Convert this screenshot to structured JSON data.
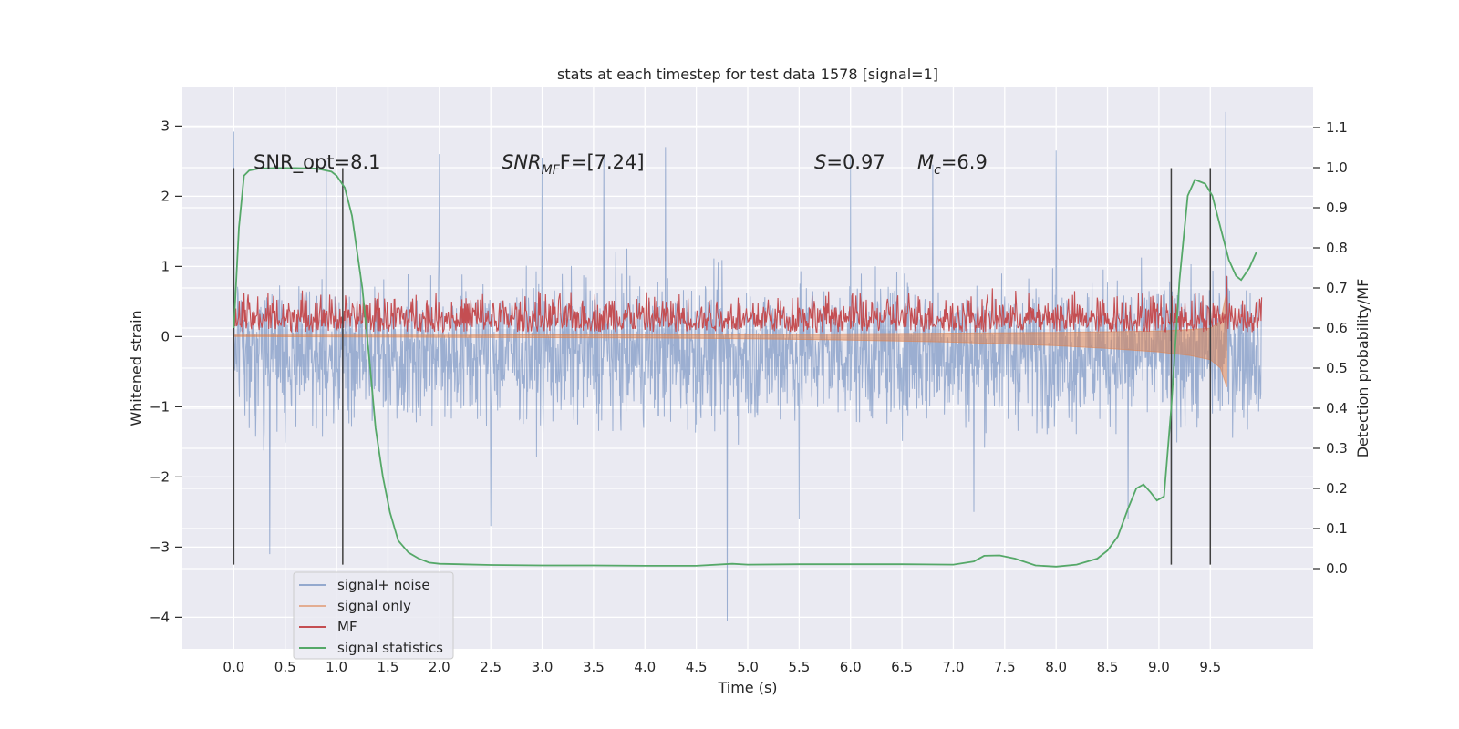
{
  "chart_data": {
    "type": "line",
    "title": "stats at each timestep for test data 1578 [signal=1]",
    "xlabel": "Time (s)",
    "ylabel_left": "Whitened strain",
    "ylabel_right": "Detection probability/MF",
    "xlim": [
      -0.5,
      10.5
    ],
    "ylim_left": [
      -4.45,
      3.55
    ],
    "ylim_right": [
      -0.2,
      1.2
    ],
    "grid": true,
    "x_ticks": [
      {
        "value": 0.0,
        "label": "0.0"
      },
      {
        "value": 0.5,
        "label": "0.5"
      },
      {
        "value": 1.0,
        "label": "1.0"
      },
      {
        "value": 1.5,
        "label": "1.5"
      },
      {
        "value": 2.0,
        "label": "2.0"
      },
      {
        "value": 2.5,
        "label": "2.5"
      },
      {
        "value": 3.0,
        "label": "3.0"
      },
      {
        "value": 3.5,
        "label": "3.5"
      },
      {
        "value": 4.0,
        "label": "4.0"
      },
      {
        "value": 4.5,
        "label": "4.5"
      },
      {
        "value": 5.0,
        "label": "5.0"
      },
      {
        "value": 5.5,
        "label": "5.5"
      },
      {
        "value": 6.0,
        "label": "6.0"
      },
      {
        "value": 6.5,
        "label": "6.5"
      },
      {
        "value": 7.0,
        "label": "7.0"
      },
      {
        "value": 7.5,
        "label": "7.5"
      },
      {
        "value": 8.0,
        "label": "8.0"
      },
      {
        "value": 8.5,
        "label": "8.5"
      },
      {
        "value": 9.0,
        "label": "9.0"
      },
      {
        "value": 9.5,
        "label": "9.5"
      }
    ],
    "y_ticks_left": [
      {
        "value": 3,
        "label": "3"
      },
      {
        "value": 2,
        "label": "2"
      },
      {
        "value": 1,
        "label": "1"
      },
      {
        "value": 0,
        "label": "0"
      },
      {
        "value": -1,
        "label": "−1"
      },
      {
        "value": -2,
        "label": "−2"
      },
      {
        "value": -3,
        "label": "−3"
      },
      {
        "value": -4,
        "label": "−4"
      }
    ],
    "y_ticks_right": [
      {
        "value": 1.1,
        "label": "1.1"
      },
      {
        "value": 1.0,
        "label": "1.0"
      },
      {
        "value": 0.9,
        "label": "0.9"
      },
      {
        "value": 0.8,
        "label": "0.8"
      },
      {
        "value": 0.7,
        "label": "0.7"
      },
      {
        "value": 0.6,
        "label": "0.6"
      },
      {
        "value": 0.5,
        "label": "0.5"
      },
      {
        "value": 0.4,
        "label": "0.4"
      },
      {
        "value": 0.3,
        "label": "0.3"
      },
      {
        "value": 0.2,
        "label": "0.2"
      },
      {
        "value": 0.1,
        "label": "0.1"
      },
      {
        "value": 0.0,
        "label": "0.0"
      }
    ],
    "annotations": {
      "snr_opt": "SNR_opt=8.1",
      "snr_mf_sym": "SNR",
      "snr_mf_sub": "MF",
      "snr_mf_val": "F=[7.24]",
      "s_sym": "S",
      "s_val": "=0.97",
      "mc_sym": "M",
      "mc_sub": "c",
      "mc_val": "=6.9"
    },
    "vertical_markers": [
      0.0,
      1.06,
      9.12,
      9.5
    ],
    "legend": {
      "placement": "lower-left",
      "entries": [
        "signal+ noise",
        "signal only",
        "MF",
        "signal statistics"
      ]
    },
    "colors": {
      "signal_noise": "#4c72b0",
      "signal_only": "#dd8452",
      "mf": "#c44e52",
      "statistics": "#55a868",
      "markers": "#404040",
      "background": "#eaeaf2",
      "grid": "#ffffff"
    },
    "series": [
      {
        "name": "signal+ noise",
        "axis": "left",
        "t_range": [
          0.0,
          10.0
        ],
        "typical_range": [
          -1.7,
          1.3
        ],
        "envelope_peaks": [
          [
            0.0,
            2.92
          ],
          [
            0.35,
            -3.1
          ],
          [
            0.9,
            2.5
          ],
          [
            1.5,
            -2.7
          ],
          [
            2.0,
            2.6
          ],
          [
            2.5,
            -2.7
          ],
          [
            3.0,
            2.55
          ],
          [
            3.6,
            2.6
          ],
          [
            4.2,
            2.7
          ],
          [
            4.8,
            -4.05
          ],
          [
            5.5,
            -2.6
          ],
          [
            6.0,
            2.6
          ],
          [
            6.8,
            2.45
          ],
          [
            7.2,
            -2.5
          ],
          [
            8.0,
            2.65
          ],
          [
            8.7,
            -2.6
          ],
          [
            9.12,
            -3.2
          ],
          [
            9.65,
            3.2
          ]
        ]
      },
      {
        "name": "signal only",
        "axis": "left",
        "x": [
          0.0,
          2.0,
          4.0,
          5.0,
          6.0,
          7.0,
          8.0,
          8.5,
          9.0,
          9.3,
          9.5,
          9.6,
          9.66
        ],
        "lower": [
          0.0,
          -0.01,
          -0.02,
          -0.03,
          -0.05,
          -0.08,
          -0.13,
          -0.17,
          -0.22,
          -0.27,
          -0.33,
          -0.45,
          -0.72
        ],
        "upper": [
          0.02,
          0.02,
          0.03,
          0.03,
          0.04,
          0.05,
          0.06,
          0.07,
          0.08,
          0.1,
          0.12,
          0.22,
          0.65
        ]
      },
      {
        "name": "MF",
        "axis": "right",
        "t_range": [
          0.0,
          10.0
        ],
        "typical_range": [
          0.59,
          0.7
        ],
        "spike": [
          9.66,
          0.73
        ]
      },
      {
        "name": "signal statistics",
        "axis": "right",
        "x": [
          0.0,
          0.05,
          0.1,
          0.15,
          0.25,
          0.4,
          0.6,
          0.8,
          0.95,
          1.0,
          1.08,
          1.15,
          1.25,
          1.32,
          1.38,
          1.45,
          1.52,
          1.6,
          1.7,
          1.8,
          1.9,
          2.0,
          2.5,
          3.0,
          3.5,
          4.0,
          4.5,
          4.85,
          5.0,
          5.5,
          6.0,
          6.5,
          7.0,
          7.2,
          7.3,
          7.45,
          7.6,
          7.8,
          8.0,
          8.2,
          8.4,
          8.5,
          8.6,
          8.7,
          8.78,
          8.85,
          8.92,
          8.98,
          9.05,
          9.12,
          9.2,
          9.28,
          9.35,
          9.45,
          9.52,
          9.6,
          9.68,
          9.75,
          9.8,
          9.88,
          9.95
        ],
        "y": [
          0.6,
          0.85,
          0.98,
          0.993,
          0.998,
          0.999,
          0.999,
          0.998,
          0.99,
          0.98,
          0.95,
          0.88,
          0.7,
          0.52,
          0.35,
          0.23,
          0.14,
          0.07,
          0.04,
          0.025,
          0.015,
          0.012,
          0.009,
          0.008,
          0.008,
          0.007,
          0.007,
          0.012,
          0.01,
          0.011,
          0.011,
          0.011,
          0.01,
          0.018,
          0.032,
          0.033,
          0.025,
          0.008,
          0.005,
          0.01,
          0.025,
          0.045,
          0.08,
          0.15,
          0.2,
          0.21,
          0.19,
          0.17,
          0.18,
          0.4,
          0.72,
          0.93,
          0.97,
          0.96,
          0.93,
          0.85,
          0.77,
          0.73,
          0.72,
          0.75,
          0.79
        ]
      }
    ]
  }
}
